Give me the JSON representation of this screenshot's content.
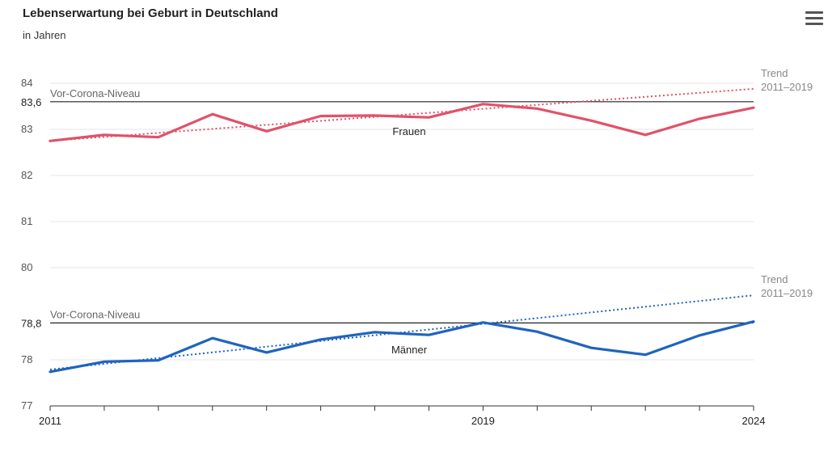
{
  "header": {
    "title": "Lebenserwartung bei Geburt in Deutschland",
    "subtitle": "in Jahren",
    "menu_icon": "hamburger-menu-icon"
  },
  "chart_data": {
    "type": "line",
    "title": "Lebenserwartung bei Geburt in Deutschland",
    "subtitle": "in Jahren",
    "x": [
      2011,
      2012,
      2013,
      2014,
      2015,
      2016,
      2017,
      2018,
      2019,
      2020,
      2021,
      2022,
      2023,
      2024
    ],
    "x_tick_labels": [
      "2011",
      "2019",
      "2024"
    ],
    "xlim": [
      2011,
      2024
    ],
    "ylim": [
      77,
      84.5
    ],
    "y_ticks": [
      77,
      78,
      80,
      81,
      82,
      83,
      84
    ],
    "y_tick_labels": [
      "77",
      "78",
      "80",
      "81",
      "82",
      "83",
      "84"
    ],
    "grid": true,
    "series": [
      {
        "name": "Frauen",
        "color": "#e0526a",
        "values": [
          82.75,
          82.88,
          82.83,
          83.33,
          82.96,
          83.29,
          83.3,
          83.26,
          83.55,
          83.45,
          83.19,
          82.88,
          83.23,
          83.47
        ]
      },
      {
        "name": "Männer",
        "color": "#1f64be",
        "values": [
          77.74,
          77.96,
          77.99,
          78.47,
          78.16,
          78.44,
          78.6,
          78.54,
          78.81,
          78.61,
          78.26,
          78.11,
          78.53,
          78.83
        ]
      }
    ],
    "reference_lines": [
      {
        "label": "Vor-Corona-Niveau",
        "value_label": "83,6",
        "y": 83.6,
        "color": "#222222"
      },
      {
        "label": "Vor-Corona-Niveau",
        "value_label": "78,8",
        "y": 78.8,
        "color": "#222222"
      }
    ],
    "trend_lines": [
      {
        "series": "Frauen",
        "label_line1": "Trend",
        "label_line2": "2011–2019",
        "color": "#e0526a",
        "x": [
          2011,
          2024
        ],
        "y": [
          82.75,
          83.88
        ]
      },
      {
        "series": "Männer",
        "label_line1": "Trend",
        "label_line2": "2011–2019",
        "color": "#1f64be",
        "x": [
          2011,
          2024
        ],
        "y": [
          77.79,
          79.4
        ]
      }
    ],
    "trend_label_color": "#888888"
  }
}
